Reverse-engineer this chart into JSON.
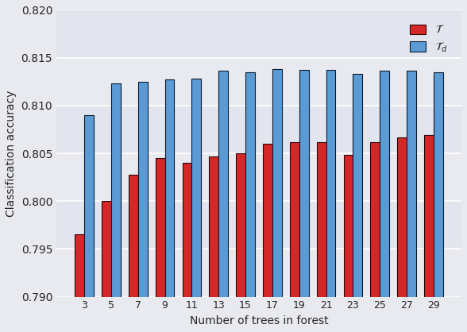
{
  "categories": [
    3,
    5,
    7,
    9,
    11,
    13,
    15,
    17,
    19,
    21,
    23,
    25,
    27,
    29
  ],
  "T_values": [
    0.7965,
    0.8,
    0.8028,
    0.8045,
    0.804,
    0.8047,
    0.805,
    0.806,
    0.8062,
    0.8062,
    0.8048,
    0.8062,
    0.8067,
    0.8069
  ],
  "Td_values": [
    0.809,
    0.8123,
    0.8125,
    0.8127,
    0.8128,
    0.8136,
    0.8135,
    0.8138,
    0.8137,
    0.8137,
    0.8133,
    0.8136,
    0.8136,
    0.8135
  ],
  "T_color": "#d62728",
  "Td_color": "#5b9bd5",
  "T_label": "$\\mathcal{T}$",
  "Td_label": "$\\mathcal{T}_d$",
  "xlabel": "Number of trees in forest",
  "ylabel": "Classification accuracy",
  "ylim": [
    0.79,
    0.82
  ],
  "yticks": [
    0.79,
    0.795,
    0.8,
    0.805,
    0.81,
    0.815,
    0.82
  ],
  "background_color": "#e8eaf0",
  "grid_color": "#ffffff",
  "bar_width": 0.35
}
